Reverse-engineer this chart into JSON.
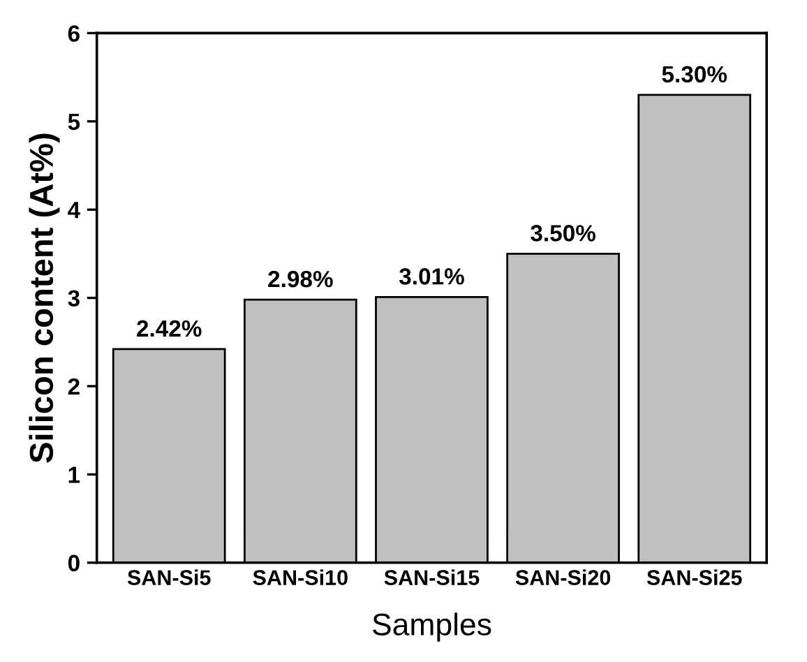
{
  "chart_data": {
    "type": "bar",
    "xlabel": "Samples",
    "ylabel": "Silicon content (At%)",
    "categories": [
      "SAN-Si5",
      "SAN-Si10",
      "SAN-Si15",
      "SAN-Si20",
      "SAN-Si25"
    ],
    "values": [
      2.42,
      2.98,
      3.01,
      3.5,
      5.3
    ],
    "value_labels": [
      "2.42%",
      "2.98%",
      "3.01%",
      "3.50%",
      "5.30%"
    ],
    "color": "#c0c0c0",
    "ylim": [
      0,
      6
    ],
    "yticks": [
      0,
      1,
      2,
      3,
      4,
      5,
      6
    ],
    "grid": false,
    "legend": false
  }
}
